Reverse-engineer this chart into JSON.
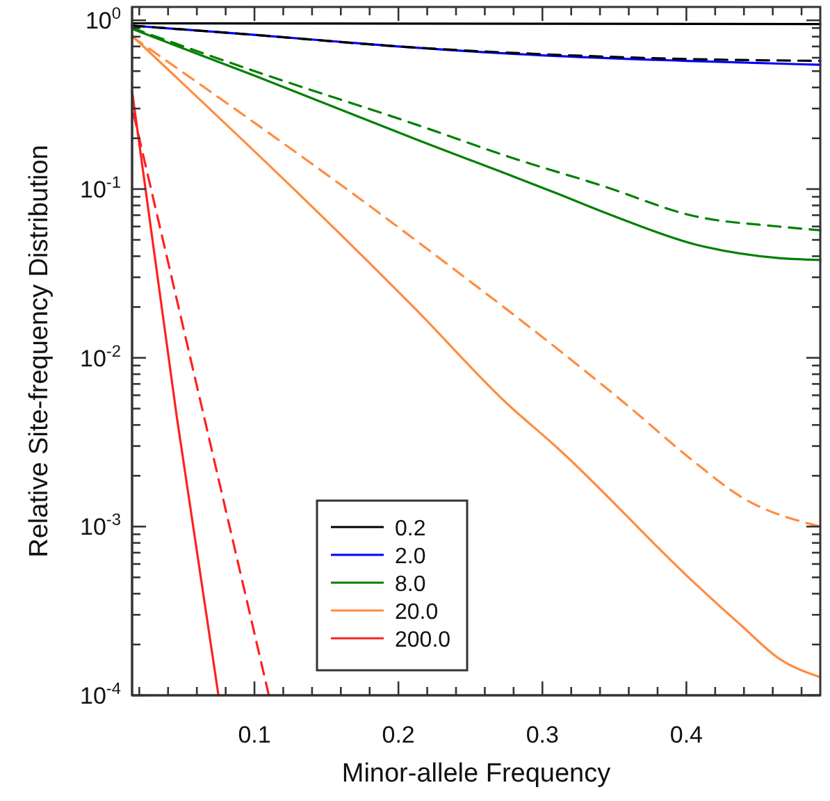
{
  "chart_data": {
    "type": "line",
    "xlabel": "Minor-allele Frequency",
    "ylabel": "Relative Site-frequency Distribution",
    "log": "y",
    "xlim": [
      0.015,
      0.493
    ],
    "ylim": [
      0.0001,
      1.2
    ],
    "xticks": [
      {
        "value": 0.02,
        "label": null
      },
      {
        "value": 0.04,
        "label": null
      },
      {
        "value": 0.06,
        "label": null
      },
      {
        "value": 0.08,
        "label": null
      },
      0.1,
      {
        "value": 0.12,
        "label": null
      },
      {
        "value": 0.14,
        "label": null
      },
      {
        "value": 0.16,
        "label": null
      },
      {
        "value": 0.18,
        "label": null
      },
      0.2,
      {
        "value": 0.22,
        "label": null
      },
      {
        "value": 0.24,
        "label": null
      },
      {
        "value": 0.26,
        "label": null
      },
      {
        "value": 0.28,
        "label": null
      },
      0.3,
      {
        "value": 0.32,
        "label": null
      },
      {
        "value": 0.34,
        "label": null
      },
      {
        "value": 0.36,
        "label": null
      },
      {
        "value": 0.38,
        "label": null
      },
      0.4,
      {
        "value": 0.42,
        "label": null
      },
      {
        "value": 0.44,
        "label": null
      },
      {
        "value": 0.46,
        "label": null
      },
      {
        "value": 0.48,
        "label": null
      }
    ],
    "yticks": [
      {
        "value": 0.0001,
        "label": "10$^{-4}$"
      },
      {
        "value": 0.0002,
        "label": null
      },
      {
        "value": 0.0003,
        "label": null
      },
      {
        "value": 0.0004,
        "label": null
      },
      {
        "value": 0.0005,
        "label": null
      },
      {
        "value": 0.0006,
        "label": null
      },
      {
        "value": 0.0007,
        "label": null
      },
      {
        "value": 0.0008,
        "label": null
      },
      {
        "value": 0.0009,
        "label": null
      },
      {
        "value": 0.001,
        "label": "10$^{-3}$"
      },
      {
        "value": 0.002,
        "label": null
      },
      {
        "value": 0.003,
        "label": null
      },
      {
        "value": 0.004,
        "label": null
      },
      {
        "value": 0.005,
        "label": null
      },
      {
        "value": 0.006,
        "label": null
      },
      {
        "value": 0.007,
        "label": null
      },
      {
        "value": 0.008,
        "label": null
      },
      {
        "value": 0.009,
        "label": null
      },
      {
        "value": 0.01,
        "label": "10$^{-2}$"
      },
      {
        "value": 0.02,
        "label": null
      },
      {
        "value": 0.03,
        "label": null
      },
      {
        "value": 0.04,
        "label": null
      },
      {
        "value": 0.05,
        "label": null
      },
      {
        "value": 0.06,
        "label": null
      },
      {
        "value": 0.07,
        "label": null
      },
      {
        "value": 0.08,
        "label": null
      },
      {
        "value": 0.09,
        "label": null
      },
      {
        "value": 0.1,
        "label": "10$^{-1}$"
      },
      {
        "value": 0.2,
        "label": null
      },
      {
        "value": 0.3,
        "label": null
      },
      {
        "value": 0.4,
        "label": null
      },
      {
        "value": 0.5,
        "label": null
      },
      {
        "value": 0.6,
        "label": null
      },
      {
        "value": 0.7,
        "label": null
      },
      {
        "value": 0.8,
        "label": null
      },
      {
        "value": 0.9,
        "label": null
      },
      {
        "value": 1,
        "label": "10$^{0}$"
      }
    ],
    "grid": false,
    "legend": "bottom left",
    "marker": "none",
    "series": [
      {
        "name": "0.2",
        "color": "#000000",
        "line_style": "solid",
        "x": [
          0.015,
          0.493
        ],
        "values": [
          0.96,
          0.95
        ]
      },
      {
        "name": "2.0",
        "color": "#0000ff",
        "line_style": "solid",
        "x": [
          0.015,
          0.1,
          0.2,
          0.3,
          0.4,
          0.493
        ],
        "values": [
          0.93,
          0.82,
          0.7,
          0.62,
          0.575,
          0.545
        ]
      },
      {
        "color": "#000000",
        "line_style": "dashed",
        "x": [
          0.015,
          0.1,
          0.2,
          0.3,
          0.4,
          0.493
        ],
        "values": [
          0.93,
          0.82,
          0.7,
          0.63,
          0.59,
          0.575
        ]
      },
      {
        "name": "8.0",
        "color": "#008000",
        "line_style": "solid",
        "x": [
          0.015,
          0.1,
          0.213,
          0.309,
          0.348,
          0.406,
          0.464,
          0.493
        ],
        "values": [
          0.89,
          0.47,
          0.196,
          0.095,
          0.07,
          0.047,
          0.039,
          0.038
        ]
      },
      {
        "color": "#008000",
        "line_style": "dashed",
        "x": [
          0.015,
          0.1,
          0.213,
          0.277,
          0.341,
          0.406,
          0.464,
          0.493
        ],
        "values": [
          0.9,
          0.5,
          0.24,
          0.155,
          0.105,
          0.069,
          0.06,
          0.057
        ]
      },
      {
        "name": "20.0",
        "color": "#ff8c40",
        "line_style": "solid",
        "x": [
          0.015,
          0.213,
          0.276,
          0.309,
          0.406,
          0.438,
          0.464,
          0.493
        ],
        "values": [
          0.81,
          0.019,
          0.0053,
          0.003,
          0.00046,
          0.00026,
          0.000166,
          0.000128
        ]
      },
      {
        "color": "#ff8c40",
        "line_style": "dashed",
        "x": [
          0.015,
          0.213,
          0.357,
          0.406,
          0.438,
          0.493
        ],
        "values": [
          0.8,
          0.049,
          0.0054,
          0.0024,
          0.0015,
          0.001
        ]
      },
      {
        "name": "200.0",
        "color": "#ff2020",
        "line_style": "solid",
        "x": [
          0.015,
          0.046,
          0.075
        ],
        "values": [
          0.38,
          0.0045,
          0.0001
        ]
      },
      {
        "color": "#ff2020",
        "line_style": "dashed",
        "x": [
          0.016,
          0.11
        ],
        "values": [
          0.28,
          0.0001
        ]
      }
    ]
  }
}
